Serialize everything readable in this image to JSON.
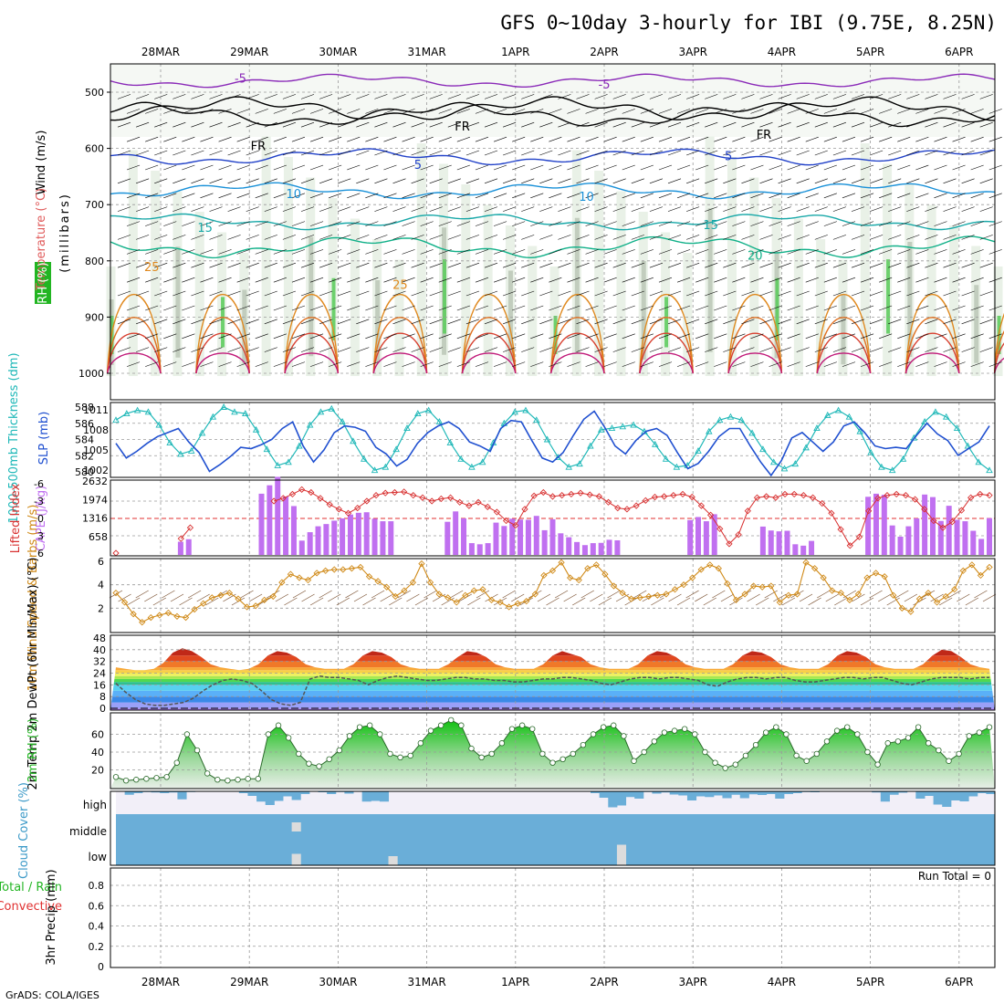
{
  "chart_data": {
    "type": "meteogram",
    "title": "GFS 0~10day 3-hourly for IBI (9.75E, 8.25N)",
    "dates": [
      "28MAR",
      "29MAR",
      "30MAR",
      "31MAR",
      "1APR",
      "2APR",
      "3APR",
      "4APR",
      "5APR",
      "6APR"
    ],
    "credit": "GrADS: COLA/IGES",
    "colors": {
      "temperature": "#e05a5a",
      "rh": "#22b522",
      "wind": "#000000",
      "thickness": "#1fb8b8",
      "slp": "#2050d0",
      "lifted": "#d83030",
      "cape": "#c070f0",
      "wind10": "#d08a18",
      "rh2m": "#22b522",
      "cloud": "#6aaed8",
      "cloud_bg": "#f2eff8",
      "grid": "#9a9a9a",
      "precip_total": "#22b522",
      "precip_conv": "#e03030"
    },
    "upper_air": {
      "ylabels": [
        "Wind (m/s)",
        "Temperature (°C)",
        "RH (%)",
        "(millibars)"
      ],
      "yticks": [
        500,
        600,
        700,
        800,
        900,
        1000
      ],
      "contour_labels": [
        {
          "text": "-5",
          "day": 0.9,
          "p": 475,
          "c": "#8a2ab8"
        },
        {
          "text": "-5",
          "day": 5.0,
          "p": 485,
          "c": "#8a2ab8"
        },
        {
          "text": "FR",
          "day": 1.1,
          "p": 595,
          "c": "#000000"
        },
        {
          "text": "FR",
          "day": 3.4,
          "p": 560,
          "c": "#000000"
        },
        {
          "text": "FR",
          "day": 6.8,
          "p": 575,
          "c": "#000000"
        },
        {
          "text": "5",
          "day": 2.9,
          "p": 628,
          "c": "#2040c8"
        },
        {
          "text": "5",
          "day": 6.4,
          "p": 613,
          "c": "#2040c8"
        },
        {
          "text": "10",
          "day": 1.5,
          "p": 680,
          "c": "#1890d8"
        },
        {
          "text": "10",
          "day": 4.8,
          "p": 685,
          "c": "#1890d8"
        },
        {
          "text": "15",
          "day": 0.5,
          "p": 740,
          "c": "#18a8a8"
        },
        {
          "text": "15",
          "day": 6.2,
          "p": 735,
          "c": "#18a8a8"
        },
        {
          "text": "20",
          "day": 6.7,
          "p": 790,
          "c": "#10b088"
        },
        {
          "text": "25",
          "day": -0.1,
          "p": 810,
          "c": "#e08a20"
        },
        {
          "text": "25",
          "day": 2.7,
          "p": 842,
          "c": "#e08a20"
        }
      ]
    },
    "thickness_slp": {
      "ylabel_left": "1000-500mb Thickness (dm)",
      "ylabel_right": "SLP (mb)",
      "thickness_ticks": [
        580,
        582,
        584,
        586,
        588
      ],
      "slp_ticks": [
        1002,
        1005,
        1008,
        1011
      ],
      "thickness": [
        586.4,
        587.2,
        587.6,
        587.4,
        585.8,
        583.6,
        582.2,
        582.6,
        584.8,
        586.8,
        588,
        587.4,
        587.2,
        585.2,
        582.8,
        580.8,
        581.2,
        583.2,
        585.8,
        587.4,
        587.8,
        586.2,
        583.8,
        581.6,
        580.2,
        580.6,
        582.8,
        585.4,
        587.2,
        587.6,
        586.2,
        583.6,
        581.6,
        580.6,
        581.2,
        583.6,
        586,
        587.4,
        587.6,
        586.4,
        584,
        581.8,
        580.6,
        581,
        583.2,
        585.2,
        585.4,
        585.6,
        585.8,
        585,
        583.4,
        581.6,
        580.6,
        580.8,
        582.6,
        585,
        586.4,
        586.8,
        586.4,
        584.8,
        582.8,
        581.2,
        580.4,
        581,
        583,
        585.4,
        587,
        587.6,
        586.8,
        585,
        582.4,
        580.6,
        580.2,
        581.6,
        584.2,
        586.2,
        587.4,
        586.8,
        585.4,
        583.2,
        581.2,
        580.2
      ],
      "slp": [
        1006,
        1003.8,
        1004.8,
        1006,
        1007,
        1007.6,
        1008.2,
        1006.2,
        1004.6,
        1001.8,
        1002.8,
        1004,
        1005.4,
        1005.2,
        1005.8,
        1006.6,
        1008.2,
        1009.2,
        1005.6,
        1003.2,
        1005,
        1007.6,
        1008.6,
        1008.4,
        1007.8,
        1005.4,
        1004.4,
        1002.6,
        1003.6,
        1006,
        1007.6,
        1008.6,
        1009.2,
        1008.2,
        1006.2,
        1005.6,
        1004.8,
        1008.2,
        1009.4,
        1009.2,
        1006.4,
        1003.8,
        1003.2,
        1004.6,
        1007.2,
        1009.6,
        1010.8,
        1008.4,
        1005.6,
        1004.4,
        1006.4,
        1007.8,
        1008.2,
        1007.2,
        1004.6,
        1002.2,
        1003,
        1004.8,
        1007,
        1008.2,
        1008.2,
        1005.6,
        1003.2,
        1001.2,
        1003.4,
        1006.8,
        1007.6,
        1006.2,
        1004.8,
        1006.2,
        1008.6,
        1009.2,
        1007.6,
        1005.6,
        1005.2,
        1005.4,
        1005.2,
        1007.2,
        1009,
        1007.4,
        1006.4,
        1004.2,
        1005.2,
        1006.2,
        1008.6
      ]
    },
    "instability": {
      "ylabel_left": "Lifted Index",
      "ylabel_right": "CAPE (J/kg)",
      "li_ticks": [
        -6,
        -3,
        0,
        3,
        6
      ],
      "cape_ticks": [
        658,
        1316,
        1974,
        2632
      ],
      "lifted_index": [
        6,
        null,
        null,
        null,
        null,
        null,
        null,
        3.5,
        1.6,
        null,
        null,
        null,
        null,
        null,
        null,
        null,
        null,
        -3,
        -3.5,
        -4.2,
        -5,
        -4.5,
        -3.5,
        -2.4,
        -1.6,
        -0.9,
        -1.8,
        -3,
        -4,
        -4.4,
        -4.5,
        -4.6,
        -4,
        -3.6,
        -3,
        -3.4,
        -3.6,
        -2.8,
        -2.2,
        -2.8,
        -2,
        -1.1,
        0.4,
        1.2,
        -1.6,
        -3.9,
        -4.5,
        -3.8,
        -4,
        -4.2,
        -4.4,
        -4.1,
        -3.8,
        -2.8,
        -1.8,
        -1.6,
        -2.2,
        -3.1,
        -3.7,
        -3.8,
        -4,
        -4.2,
        -3.7,
        -2.2,
        -0.6,
        1.8,
        4.4,
        2.8,
        -1.3,
        -3.6,
        -3.8,
        -3.6,
        -4.2,
        -4.2,
        -4,
        -3.6,
        -2.6,
        -0.9,
        1.9,
        4.7,
        3.2,
        -1.3,
        -3.5,
        -4,
        -4.2,
        -4,
        -3.3,
        -1.6,
        0.4,
        1.6,
        0.6,
        -1.4,
        -3.6,
        -4.2,
        -4
      ],
      "cape": [
        0,
        0,
        0,
        0,
        0,
        0,
        0,
        0,
        470,
        560,
        0,
        0,
        0,
        0,
        0,
        0,
        0,
        0,
        2180,
        2480,
        2780,
        2080,
        1740,
        510,
        810,
        1020,
        1100,
        1220,
        1300,
        1440,
        1500,
        1520,
        1290,
        1200,
        1200,
        0,
        0,
        0,
        0,
        0,
        0,
        1180,
        1550,
        1300,
        420,
        380,
        420,
        1150,
        1030,
        1290,
        1260,
        1250,
        1390,
        880,
        1270,
        770,
        630,
        460,
        350,
        420,
        430,
        540,
        520,
        0,
        0,
        0,
        0,
        0,
        0,
        0,
        0,
        1240,
        1350,
        1200,
        1450,
        0,
        0,
        0,
        0,
        0,
        1010,
        870,
        840,
        860,
        380,
        330,
        500,
        0,
        0,
        0,
        0,
        0,
        0,
        2070,
        2180,
        2140,
        1050,
        650,
        1020,
        1300,
        2150,
        2060,
        1210,
        1750,
        1250,
        1200,
        860,
        570,
        1310
      ]
    },
    "wind10m": {
      "ylabel": "10m Wind Speed & Barbs (m/s)",
      "yticks": [
        2,
        4,
        6
      ],
      "speed": [
        3.3,
        2.5,
        1.5,
        0.8,
        1.2,
        1.4,
        1.6,
        1.3,
        1.2,
        1.9,
        2.4,
        2.9,
        3.1,
        3.3,
        2.8,
        2.1,
        2.2,
        2.7,
        3.0,
        4.2,
        4.9,
        4.6,
        4.4,
        5.0,
        5.2,
        5.3,
        5.3,
        5.4,
        5.5,
        4.7,
        4.3,
        3.8,
        3.0,
        3.5,
        4.2,
        5.8,
        4.2,
        3.2,
        2.9,
        2.5,
        3.1,
        3.5,
        3.6,
        2.7,
        2.5,
        2.1,
        2.4,
        2.6,
        3.2,
        4.8,
        5.2,
        5.9,
        4.6,
        4.4,
        5.4,
        5.7,
        4.9,
        3.9,
        3.3,
        2.8,
        2.9,
        3.0,
        3.1,
        3.2,
        3.6,
        4.0,
        4.6,
        5.3,
        5.7,
        5.4,
        4.1,
        2.7,
        3.2,
        3.9,
        3.8,
        3.9,
        2.5,
        3.1,
        3.2,
        5.9,
        5.4,
        4.6,
        3.5,
        3.3,
        2.7,
        3.2,
        4.6,
        5.0,
        4.7,
        3.1,
        2.0,
        1.7,
        2.8,
        3.3,
        2.5,
        3.0,
        3.6,
        5.2,
        5.7,
        4.8,
        5.5
      ]
    },
    "temp2m": {
      "ylabel": "2m Temp 2m DewPt (6hr Min/Max) (°C)",
      "yticks": [
        0,
        8,
        16,
        24,
        32,
        40,
        48
      ],
      "temp": [
        28,
        27,
        26,
        26,
        27,
        31,
        38,
        41,
        39,
        35,
        30,
        28,
        27,
        26,
        27,
        30,
        36,
        39,
        38,
        35,
        30,
        28,
        27,
        27,
        27,
        30,
        36,
        39,
        38,
        35,
        30,
        28,
        27,
        27,
        27,
        30,
        35,
        39,
        38,
        35,
        30,
        28,
        27,
        27,
        27,
        30,
        36,
        39,
        37,
        35,
        30,
        28,
        27,
        27,
        27,
        30,
        36,
        39,
        38,
        35,
        30,
        28,
        27,
        27,
        27,
        30,
        36,
        39,
        38,
        35,
        30,
        28,
        27,
        27,
        27,
        30,
        36,
        39,
        38,
        35,
        30,
        28,
        27,
        27,
        27,
        30,
        36,
        40,
        39,
        35,
        30,
        28,
        27
      ],
      "dewpt": [
        17,
        11,
        6,
        3,
        2,
        2,
        3,
        4,
        7,
        12,
        16,
        19,
        20,
        19,
        17,
        12,
        6,
        3,
        2,
        4,
        20,
        22,
        21,
        21,
        20,
        19,
        16,
        19,
        21,
        22,
        21,
        20,
        19,
        19,
        20,
        21,
        21,
        20,
        20,
        19,
        19,
        18,
        18,
        19,
        20,
        20,
        21,
        21,
        20,
        19,
        17,
        16,
        18,
        20,
        21,
        21,
        20,
        21,
        21,
        20,
        19,
        16,
        15,
        18,
        20,
        21,
        21,
        20,
        21,
        21,
        19,
        18,
        18,
        19,
        20,
        21,
        21,
        20,
        21,
        21,
        19,
        17,
        16,
        18,
        20,
        21,
        21,
        21,
        20,
        21,
        21
      ],
      "min_label": "(6hr Min/Max)"
    },
    "rh2m": {
      "ylabel": "2m RH (%)",
      "yticks": [
        20,
        40,
        60
      ],
      "rh": [
        12,
        8,
        9,
        10,
        11,
        12,
        28,
        60,
        42,
        16,
        9,
        8,
        9,
        10,
        10,
        60,
        70,
        56,
        38,
        27,
        24,
        32,
        42,
        58,
        68,
        70,
        60,
        38,
        34,
        36,
        50,
        64,
        70,
        76,
        70,
        44,
        34,
        38,
        50,
        66,
        70,
        66,
        38,
        28,
        32,
        38,
        48,
        60,
        68,
        70,
        58,
        30,
        40,
        52,
        62,
        64,
        66,
        60,
        40,
        28,
        22,
        26,
        36,
        48,
        62,
        68,
        60,
        36,
        30,
        38,
        52,
        64,
        68,
        60,
        40,
        26,
        50,
        52,
        56,
        68,
        50,
        42,
        30,
        38,
        58,
        62,
        68
      ]
    },
    "cloud": {
      "ylabel": "Cloud Cover (%)",
      "levels": [
        "high",
        "middle",
        "low"
      ],
      "high": [
        2,
        15,
        8,
        3,
        5,
        8,
        5,
        35,
        3,
        2,
        0,
        0,
        0,
        2,
        8,
        20,
        45,
        60,
        42,
        22,
        38,
        12,
        0,
        4,
        12,
        3,
        10,
        0,
        45,
        42,
        45,
        0,
        0,
        0,
        0,
        0,
        0,
        0,
        0,
        0,
        0,
        0,
        0,
        0,
        0,
        0,
        0,
        0,
        0,
        0,
        0,
        0,
        2,
        0,
        8,
        28,
        70,
        62,
        25,
        32,
        3,
        10,
        5,
        14,
        18,
        40,
        22,
        25,
        18,
        30,
        15,
        30,
        13,
        16,
        12,
        32,
        12,
        8,
        3,
        4,
        0,
        0,
        0,
        0,
        0,
        0,
        5,
        45,
        15,
        6,
        0,
        32,
        20,
        58,
        68,
        40,
        44,
        22,
        8,
        12
      ],
      "middle_gap": [
        0,
        0,
        0,
        0,
        0,
        0,
        0,
        0,
        0,
        0,
        0,
        0,
        0,
        0,
        0,
        0,
        0,
        0,
        0,
        0,
        40,
        0,
        0,
        0,
        0,
        0,
        0,
        0,
        0,
        0,
        0,
        0,
        0,
        0,
        0,
        0,
        0,
        0,
        0,
        0,
        0,
        0,
        0,
        0,
        0,
        0,
        0,
        0,
        0,
        0,
        0,
        0,
        0,
        0,
        0,
        0,
        0,
        0,
        0,
        0,
        0,
        0,
        0,
        0,
        0,
        0,
        0,
        0,
        0,
        0,
        0,
        0,
        0,
        0,
        0,
        0,
        0,
        0,
        0,
        0,
        0,
        0,
        0,
        0,
        0,
        0,
        0,
        0,
        0,
        0,
        0,
        0,
        0,
        0,
        0,
        0,
        0,
        0,
        0,
        0
      ],
      "low_gap": [
        0,
        0,
        0,
        0,
        0,
        0,
        0,
        0,
        0,
        0,
        0,
        0,
        0,
        0,
        0,
        0,
        0,
        0,
        0,
        0,
        50,
        0,
        0,
        0,
        0,
        0,
        0,
        0,
        0,
        0,
        0,
        40,
        0,
        0,
        0,
        0,
        0,
        0,
        0,
        0,
        0,
        0,
        0,
        0,
        0,
        0,
        0,
        0,
        0,
        0,
        0,
        0,
        0,
        0,
        0,
        0,
        0,
        90,
        0,
        0,
        0,
        0,
        0,
        0,
        0,
        0,
        0,
        0,
        0,
        0,
        0,
        0,
        0,
        0,
        0,
        0,
        0,
        0,
        0,
        0,
        0,
        0,
        0,
        0,
        0,
        0,
        0,
        0,
        0,
        0,
        0,
        0,
        0,
        0,
        0,
        0,
        0,
        0,
        0,
        0
      ]
    },
    "precip": {
      "ylabel": "3hr Precip (mm)",
      "legend_total": "Total / Rain",
      "legend_conv": "Convective",
      "yticks": [
        0,
        0.2,
        0.4,
        0.6,
        0.8
      ],
      "run_total_label": "Run Total = 0",
      "total": []
    }
  }
}
